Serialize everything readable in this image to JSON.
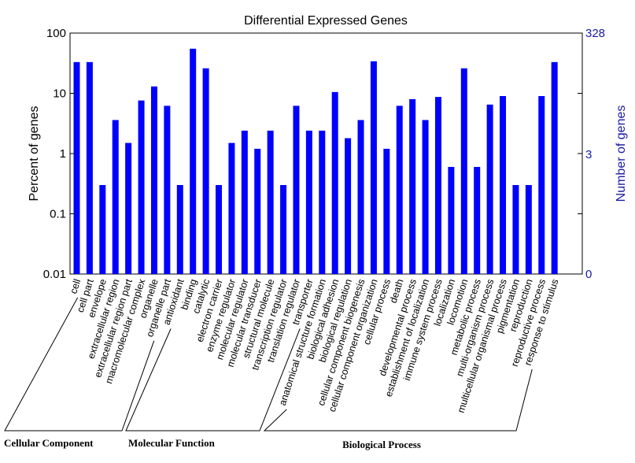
{
  "chart_data": {
    "type": "bar",
    "title": "Differential Expressed Genes",
    "ylabel": "Percent of genes",
    "y2label": "Number of genes",
    "yscale": "log",
    "ylim": [
      0.01,
      100
    ],
    "yticks": [
      "0.01",
      "0.1",
      "1",
      "10",
      "100"
    ],
    "y2ticks": [
      "0",
      "3",
      "328"
    ],
    "bar_color": "#0000ff",
    "y2_color": "#1a1aa6",
    "categories": [
      "cell",
      "cell part",
      "envelope",
      "extracellular region",
      "extracellular region part",
      "macromolecular complex",
      "organelle",
      "organelle part",
      "antioxidant",
      "binding",
      "catalytic",
      "electron carrier",
      "enzyme regulator",
      "molecular regulator",
      "molecular transducer",
      "structural molecule",
      "transcription regulator",
      "translation regulator",
      "transporter",
      "anatomical structure formation",
      "biological adhesion",
      "biological regulation",
      "cellular component biogenesis",
      "cellular component organization",
      "cellular process",
      "death",
      "developmental process",
      "establishment of localization",
      "immune system process",
      "localization",
      "locomotion",
      "metabolic process",
      "multi-organism process",
      "multicellular organismal process",
      "pigmentation",
      "reproduction",
      "reproductive process",
      "response to stimulus"
    ],
    "values": [
      33,
      33,
      0.3,
      3.6,
      1.5,
      7.6,
      13,
      6.2,
      0.3,
      55,
      26,
      0.3,
      1.5,
      2.4,
      1.2,
      2.4,
      0.3,
      6.2,
      2.4,
      2.4,
      10.5,
      1.8,
      3.6,
      34,
      1.2,
      6.2,
      8,
      3.6,
      8.7,
      0.6,
      26,
      0.6,
      6.5,
      9,
      0.3,
      0.3,
      9,
      33
    ],
    "groups": [
      {
        "name": "Cellular Component",
        "start": 0,
        "end": 7
      },
      {
        "name": "Molecular Function",
        "start": 8,
        "end": 18
      },
      {
        "name": "Biological Process",
        "start": 19,
        "end": 37
      }
    ]
  }
}
